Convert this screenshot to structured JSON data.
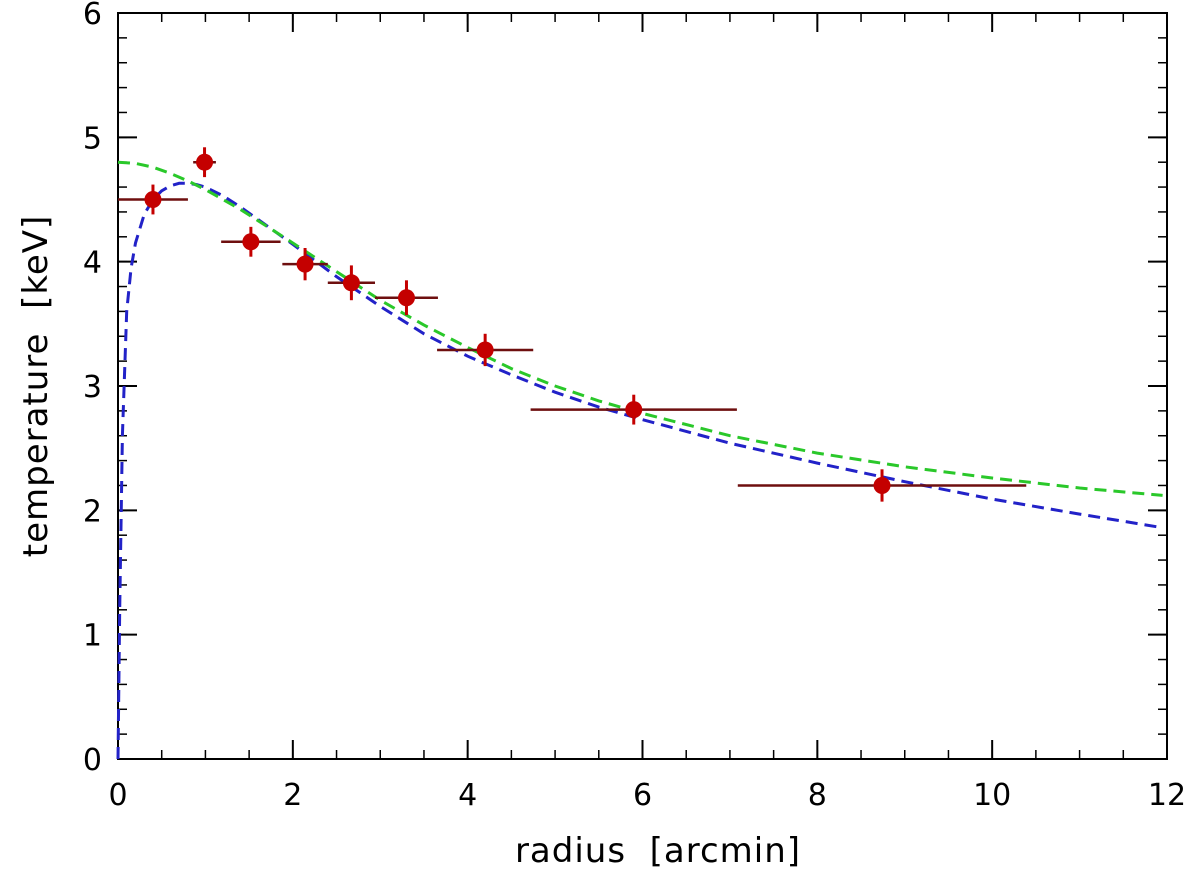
{
  "chart_data": {
    "type": "scatter",
    "xlabel": "radius  [arcmin]",
    "ylabel": "temperature  [keV]",
    "xlim": [
      0,
      12
    ],
    "ylim": [
      0,
      6
    ],
    "x_ticks": [
      0,
      2,
      4,
      6,
      8,
      10,
      12
    ],
    "y_ticks": [
      0,
      1,
      2,
      3,
      4,
      5,
      6
    ],
    "x_tick_labels": [
      "0",
      "2",
      "4",
      "6",
      "8",
      "10",
      "12"
    ],
    "y_tick_labels": [
      "0",
      "1",
      "2",
      "3",
      "4",
      "5",
      "6"
    ],
    "x_minor_step": 0.5,
    "y_minor_step": 0.2,
    "grid": false,
    "points": [
      {
        "x": 0.4,
        "y": 4.5,
        "xerr": [
          0.4,
          0.4
        ],
        "yerr": 0.12
      },
      {
        "x": 0.99,
        "y": 4.8,
        "xerr": [
          0.13,
          0.13
        ],
        "yerr": 0.12
      },
      {
        "x": 1.52,
        "y": 4.16,
        "xerr": [
          0.34,
          0.34
        ],
        "yerr": 0.12
      },
      {
        "x": 2.14,
        "y": 3.98,
        "xerr": [
          0.26,
          0.26
        ],
        "yerr": 0.13
      },
      {
        "x": 2.67,
        "y": 3.83,
        "xerr": [
          0.27,
          0.27
        ],
        "yerr": 0.14
      },
      {
        "x": 3.3,
        "y": 3.71,
        "xerr": [
          0.36,
          0.36
        ],
        "yerr": 0.14
      },
      {
        "x": 4.2,
        "y": 3.29,
        "xerr": [
          0.55,
          0.55
        ],
        "yerr": 0.13
      },
      {
        "x": 5.9,
        "y": 2.81,
        "xerr": [
          1.18,
          1.18
        ],
        "yerr": 0.12
      },
      {
        "x": 8.74,
        "y": 2.2,
        "xerr": [
          1.65,
          1.65
        ],
        "yerr": 0.13
      }
    ],
    "curves": [
      {
        "color": "#2222c8",
        "x": [
          0.0,
          0.02,
          0.05,
          0.1,
          0.15,
          0.2,
          0.3,
          0.4,
          0.5,
          0.6,
          0.7,
          0.8,
          0.9,
          1.0,
          1.2,
          1.4,
          1.6,
          1.8,
          2.0,
          2.5,
          3.0,
          3.5,
          4.0,
          4.5,
          5.0,
          5.5,
          6.0,
          7.0,
          8.0,
          9.0,
          10.0,
          11.0,
          11.95
        ],
        "y": [
          0.0,
          1.2,
          2.6,
          3.6,
          3.95,
          4.15,
          4.38,
          4.5,
          4.57,
          4.61,
          4.63,
          4.63,
          4.62,
          4.6,
          4.53,
          4.44,
          4.34,
          4.24,
          4.14,
          3.88,
          3.64,
          3.42,
          3.24,
          3.09,
          2.95,
          2.83,
          2.73,
          2.54,
          2.38,
          2.23,
          2.09,
          1.97,
          1.86
        ]
      },
      {
        "color": "#2ac82a",
        "x": [
          0.0,
          0.2,
          0.4,
          0.6,
          0.8,
          1.0,
          1.2,
          1.4,
          1.6,
          1.8,
          2.0,
          2.5,
          3.0,
          3.5,
          4.0,
          4.5,
          5.0,
          5.5,
          6.0,
          7.0,
          8.0,
          9.0,
          10.0,
          11.0,
          11.95
        ],
        "y": [
          4.8,
          4.79,
          4.76,
          4.71,
          4.65,
          4.58,
          4.5,
          4.42,
          4.33,
          4.24,
          4.15,
          3.92,
          3.69,
          3.49,
          3.31,
          3.14,
          3.0,
          2.88,
          2.78,
          2.6,
          2.46,
          2.35,
          2.26,
          2.18,
          2.12
        ]
      }
    ],
    "point_color": "#c40000",
    "errorbar_color": "#6e0f0f"
  }
}
